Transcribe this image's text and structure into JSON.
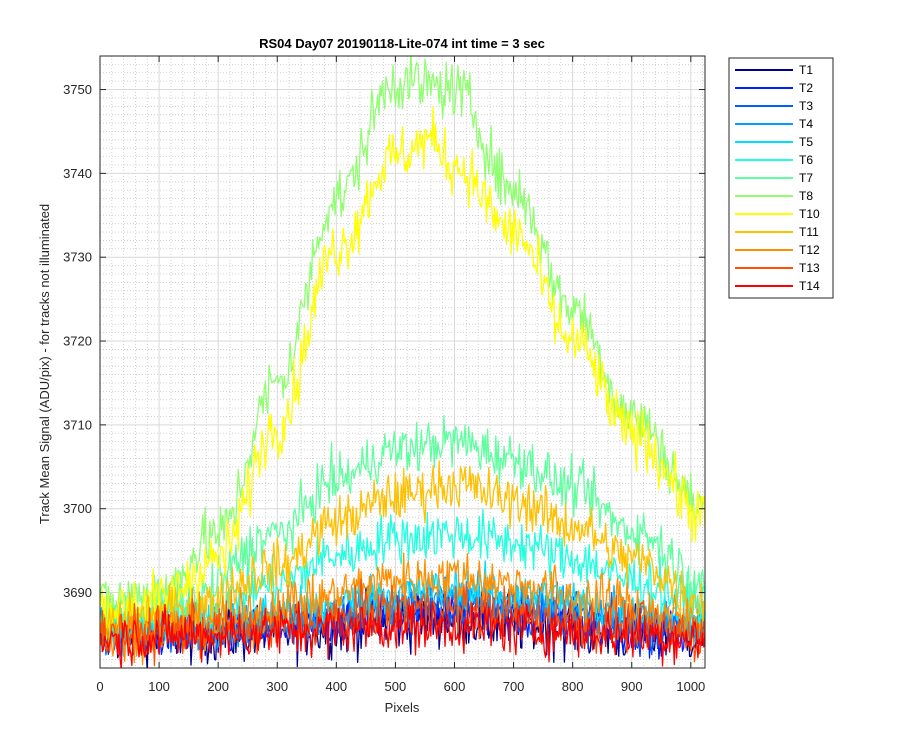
{
  "chart_data": {
    "type": "line",
    "title": "RS04 Day07 20190118-Lite-074 int time = 3 sec",
    "xlabel": "Pixels",
    "ylabel": "Track Mean Signal (ADU/pix) - for tracks not illuminated",
    "xlim": [
      0,
      1024
    ],
    "ylim": [
      3681,
      3754
    ],
    "xticks": [
      0,
      100,
      200,
      300,
      400,
      500,
      600,
      700,
      800,
      900,
      1000
    ],
    "yticks": [
      3690,
      3700,
      3710,
      3720,
      3730,
      3740,
      3750
    ],
    "grid": true,
    "minor_grid": true,
    "legend_position": "outside-right-top",
    "series": [
      {
        "name": "T1",
        "color": "#00008f",
        "noise": 3.4,
        "points": [
          [
            0,
            3685
          ],
          [
            200,
            3685
          ],
          [
            350,
            3685.5
          ],
          [
            500,
            3686.5
          ],
          [
            600,
            3687
          ],
          [
            750,
            3686
          ],
          [
            900,
            3685
          ],
          [
            1024,
            3685
          ]
        ]
      },
      {
        "name": "T2",
        "color": "#0020ff",
        "noise": 2.6,
        "points": [
          [
            0,
            3685
          ],
          [
            200,
            3685
          ],
          [
            350,
            3686
          ],
          [
            500,
            3687.5
          ],
          [
            600,
            3688
          ],
          [
            750,
            3687
          ],
          [
            900,
            3685.5
          ],
          [
            1024,
            3685
          ]
        ]
      },
      {
        "name": "T3",
        "color": "#005fff",
        "noise": 2.6,
        "points": [
          [
            0,
            3685
          ],
          [
            200,
            3685.5
          ],
          [
            350,
            3686.5
          ],
          [
            500,
            3688
          ],
          [
            600,
            3688.5
          ],
          [
            750,
            3687.5
          ],
          [
            900,
            3686
          ],
          [
            1024,
            3685.5
          ]
        ]
      },
      {
        "name": "T4",
        "color": "#009fff",
        "noise": 2.6,
        "points": [
          [
            0,
            3685.5
          ],
          [
            200,
            3686
          ],
          [
            350,
            3687
          ],
          [
            500,
            3689
          ],
          [
            600,
            3689.5
          ],
          [
            750,
            3688.5
          ],
          [
            900,
            3687
          ],
          [
            1024,
            3686
          ]
        ]
      },
      {
        "name": "T5",
        "color": "#00dfff",
        "noise": 2.6,
        "points": [
          [
            0,
            3686
          ],
          [
            200,
            3686.5
          ],
          [
            350,
            3688
          ],
          [
            500,
            3690
          ],
          [
            600,
            3690.5
          ],
          [
            750,
            3689.5
          ],
          [
            900,
            3687.5
          ],
          [
            1024,
            3686.5
          ]
        ]
      },
      {
        "name": "T6",
        "color": "#20ffdf",
        "noise": 3.0,
        "points": [
          [
            0,
            3686.5
          ],
          [
            150,
            3687.5
          ],
          [
            300,
            3691
          ],
          [
            400,
            3694.5
          ],
          [
            500,
            3696.5
          ],
          [
            600,
            3697
          ],
          [
            700,
            3696
          ],
          [
            800,
            3694
          ],
          [
            900,
            3691.5
          ],
          [
            1024,
            3688.5
          ]
        ]
      },
      {
        "name": "T7",
        "color": "#5fffa0",
        "noise": 3.0,
        "points": [
          [
            0,
            3687
          ],
          [
            150,
            3689
          ],
          [
            300,
            3697
          ],
          [
            400,
            3703.5
          ],
          [
            500,
            3707
          ],
          [
            600,
            3708
          ],
          [
            700,
            3706
          ],
          [
            800,
            3702.5
          ],
          [
            900,
            3697.5
          ],
          [
            1024,
            3691.5
          ]
        ]
      },
      {
        "name": "T8",
        "color": "#8fff70",
        "noise": 3.4,
        "points": [
          [
            0,
            3688.5
          ],
          [
            100,
            3690
          ],
          [
            200,
            3697
          ],
          [
            300,
            3715
          ],
          [
            400,
            3737
          ],
          [
            500,
            3751
          ],
          [
            600,
            3750
          ],
          [
            700,
            3738
          ],
          [
            800,
            3724
          ],
          [
            900,
            3711
          ],
          [
            1024,
            3700
          ]
        ]
      },
      {
        "name": "T10",
        "color": "#ffff00",
        "noise": 3.4,
        "points": [
          [
            0,
            3688
          ],
          [
            100,
            3689
          ],
          [
            200,
            3694
          ],
          [
            300,
            3710
          ],
          [
            400,
            3731
          ],
          [
            500,
            3742
          ],
          [
            560,
            3744
          ],
          [
            600,
            3741
          ],
          [
            700,
            3733
          ],
          [
            800,
            3720
          ],
          [
            900,
            3709
          ],
          [
            1024,
            3699
          ]
        ]
      },
      {
        "name": "T11",
        "color": "#ffc000",
        "noise": 3.0,
        "points": [
          [
            0,
            3686
          ],
          [
            150,
            3688
          ],
          [
            300,
            3693
          ],
          [
            400,
            3698.5
          ],
          [
            500,
            3701.5
          ],
          [
            600,
            3703
          ],
          [
            700,
            3701
          ],
          [
            800,
            3698
          ],
          [
            900,
            3694
          ],
          [
            1024,
            3689
          ]
        ]
      },
      {
        "name": "T12",
        "color": "#ff8f00",
        "noise": 3.0,
        "points": [
          [
            0,
            3685
          ],
          [
            200,
            3686.5
          ],
          [
            350,
            3689
          ],
          [
            500,
            3691.5
          ],
          [
            600,
            3692
          ],
          [
            700,
            3691
          ],
          [
            850,
            3689
          ],
          [
            1024,
            3686.5
          ]
        ]
      },
      {
        "name": "T13",
        "color": "#ff4f00",
        "noise": 3.0,
        "points": [
          [
            0,
            3685
          ],
          [
            200,
            3685.5
          ],
          [
            350,
            3686.5
          ],
          [
            500,
            3688
          ],
          [
            600,
            3688
          ],
          [
            750,
            3687
          ],
          [
            900,
            3686
          ],
          [
            1024,
            3685
          ]
        ]
      },
      {
        "name": "T14",
        "color": "#ff0000",
        "noise": 3.0,
        "points": [
          [
            0,
            3684.5
          ],
          [
            200,
            3685
          ],
          [
            350,
            3685.5
          ],
          [
            500,
            3686
          ],
          [
            600,
            3686
          ],
          [
            750,
            3685.5
          ],
          [
            900,
            3685
          ],
          [
            1024,
            3684.5
          ]
        ]
      }
    ]
  }
}
